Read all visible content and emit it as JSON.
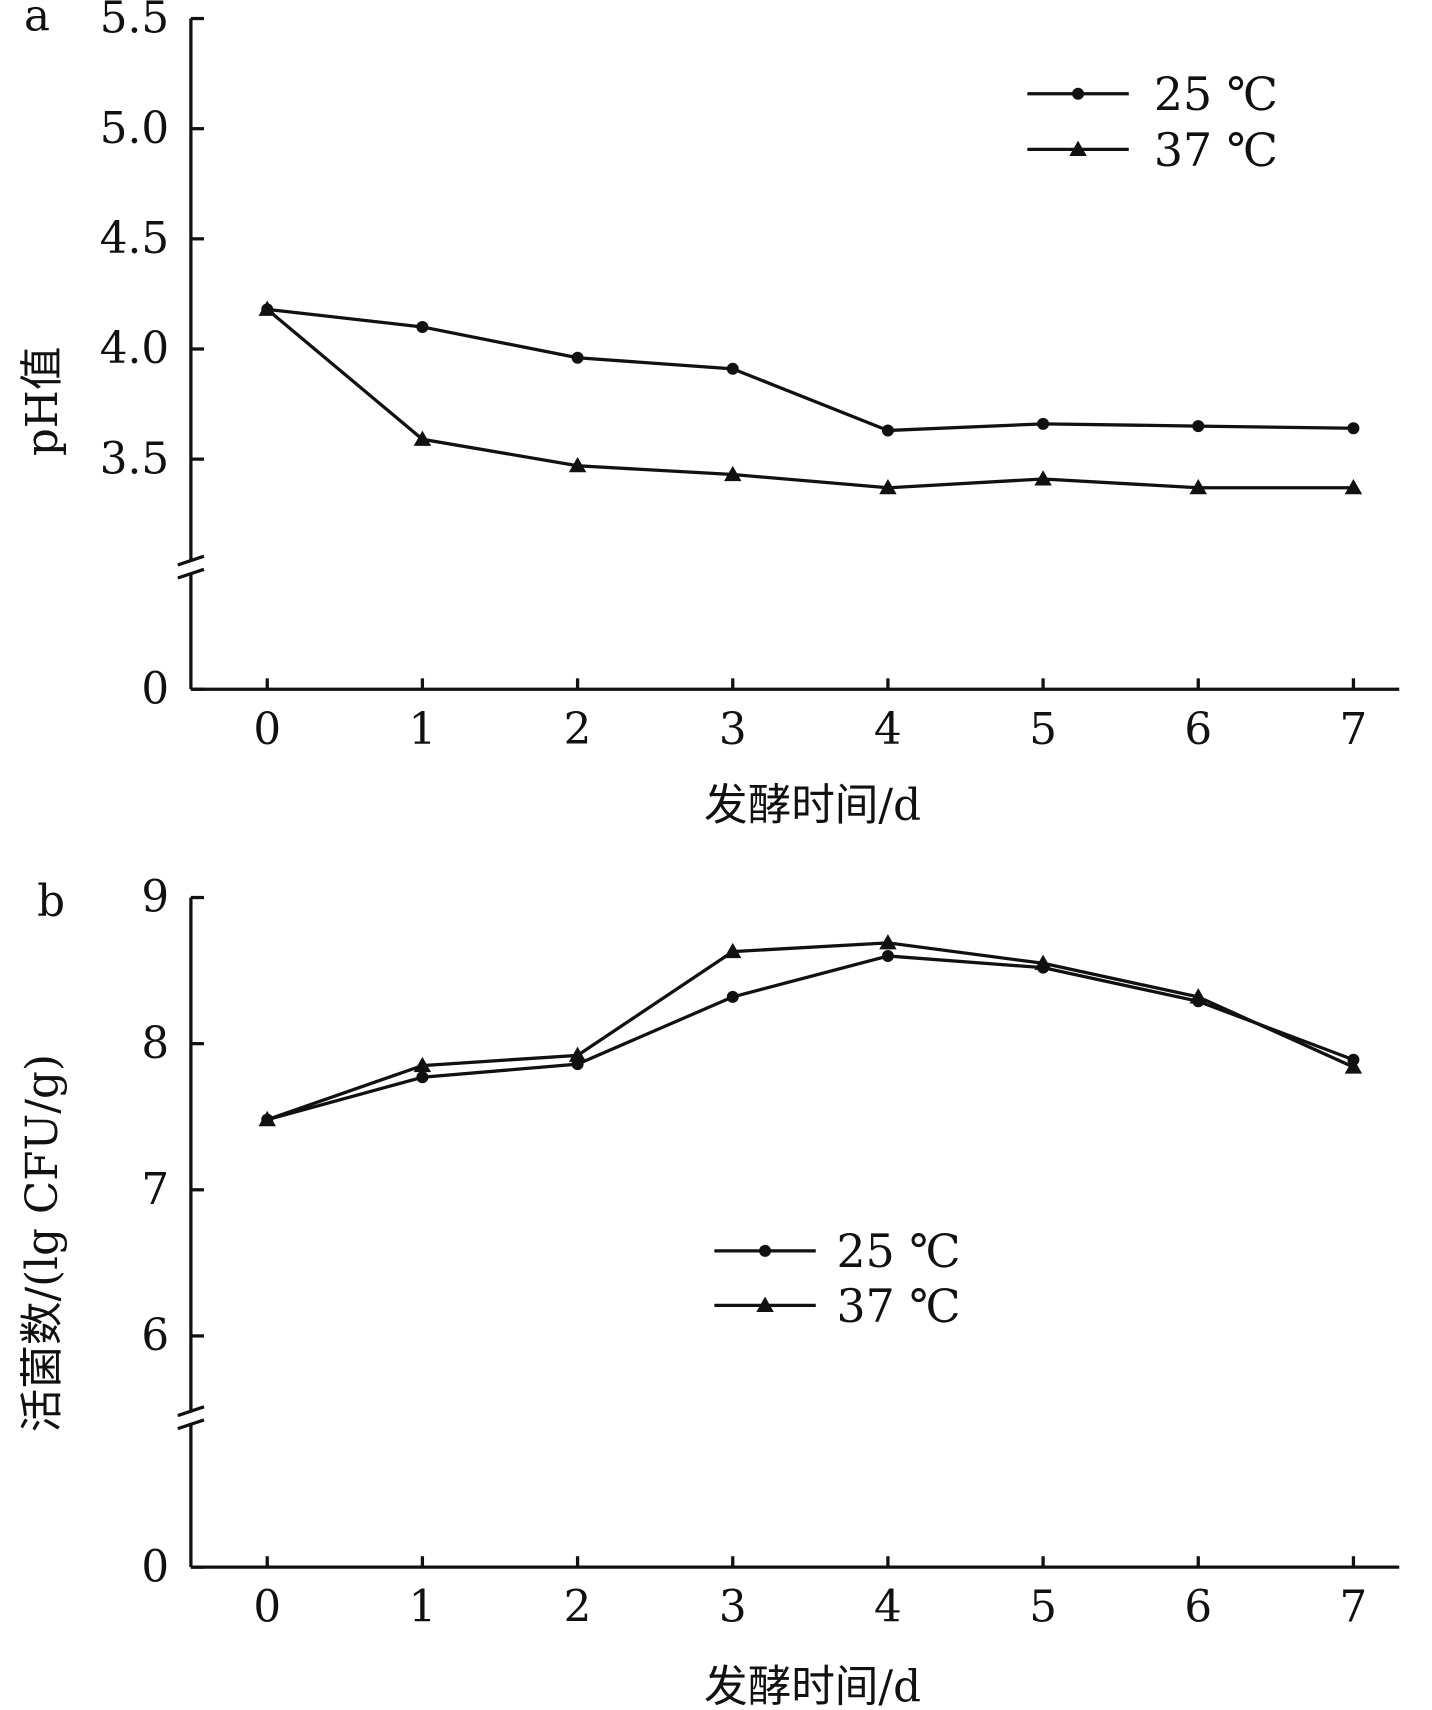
{
  "chart_data": [
    {
      "type": "line",
      "panel_label": "a",
      "xlabel": "发酵时间/d",
      "ylabel": "pH值",
      "x": [
        0,
        1,
        2,
        3,
        4,
        5,
        6,
        7
      ],
      "x_ticks": [
        "0",
        "1",
        "2",
        "3",
        "4",
        "5",
        "6",
        "7"
      ],
      "y_ticks": [
        "0",
        "3.5",
        "4.0",
        "4.5",
        "5.0",
        "5.5"
      ],
      "ylim": [
        3.0,
        5.5
      ],
      "axis_break": true,
      "legend": "top-right",
      "grid": false,
      "series": [
        {
          "name": "25 ℃",
          "marker": "circle",
          "values": [
            4.18,
            4.1,
            3.96,
            3.91,
            3.63,
            3.66,
            3.65,
            3.64
          ]
        },
        {
          "name": "37 ℃",
          "marker": "triangle",
          "values": [
            4.18,
            3.59,
            3.47,
            3.43,
            3.37,
            3.41,
            3.37,
            3.37
          ]
        }
      ]
    },
    {
      "type": "line",
      "panel_label": "b",
      "xlabel": "发酵时间/d",
      "ylabel": "活菌数/(lg CFU/g)",
      "x": [
        0,
        1,
        2,
        3,
        4,
        5,
        6,
        7
      ],
      "x_ticks": [
        "0",
        "1",
        "2",
        "3",
        "4",
        "5",
        "6",
        "7"
      ],
      "y_ticks": [
        "0",
        "6",
        "7",
        "8",
        "9"
      ],
      "ylim": [
        5.5,
        9
      ],
      "axis_break": true,
      "legend": "center",
      "grid": false,
      "series": [
        {
          "name": "25 ℃",
          "marker": "circle",
          "values": [
            7.48,
            7.77,
            7.86,
            8.32,
            8.6,
            8.52,
            8.29,
            7.89
          ]
        },
        {
          "name": "37 ℃",
          "marker": "triangle",
          "values": [
            7.48,
            7.85,
            7.92,
            8.63,
            8.69,
            8.55,
            8.32,
            7.84
          ]
        }
      ]
    }
  ]
}
